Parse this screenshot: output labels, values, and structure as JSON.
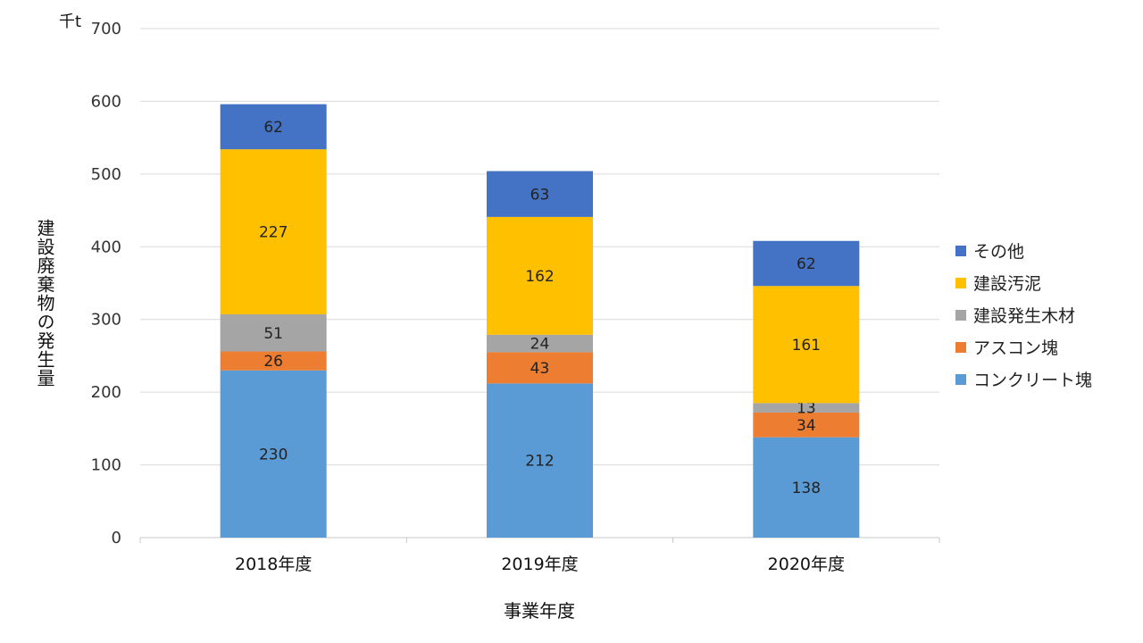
{
  "chart_data": {
    "type": "bar",
    "stacked": true,
    "unit_label": "千t",
    "categories": [
      "2018年度",
      "2019年度",
      "2020年度"
    ],
    "series": [
      {
        "name": "コンクリート塊",
        "color": "#5B9BD5",
        "values": [
          230,
          212,
          138
        ]
      },
      {
        "name": "アスコン塊",
        "color": "#ED7D31",
        "values": [
          26,
          43,
          34
        ]
      },
      {
        "name": "建設発生木材",
        "color": "#A5A5A5",
        "values": [
          51,
          24,
          13
        ]
      },
      {
        "name": "建設汚泥",
        "color": "#FFC000",
        "values": [
          227,
          162,
          161
        ]
      },
      {
        "name": "その他",
        "color": "#4472C4",
        "values": [
          62,
          63,
          62
        ]
      }
    ],
    "xlabel": "事業年度",
    "ylabel": "建設廃棄物の発生量",
    "ylim": [
      0,
      700
    ],
    "yticks": [
      0,
      100,
      200,
      300,
      400,
      500,
      600,
      700
    ],
    "grid": true,
    "legend_position": "right",
    "legend_order": [
      "その他",
      "建設汚泥",
      "建設発生木材",
      "アスコン塊",
      "コンクリート塊"
    ]
  }
}
